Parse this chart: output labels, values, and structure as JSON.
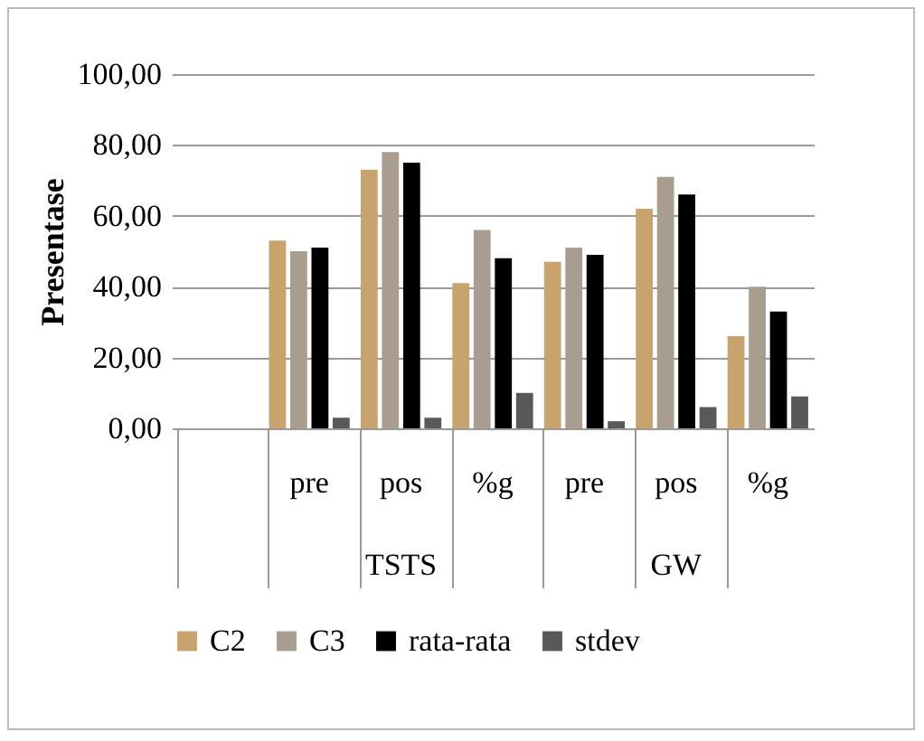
{
  "chart_data": {
    "type": "bar",
    "ylabel": "Presentase",
    "categories": [
      null,
      "pre",
      "pos",
      "%g",
      "pre",
      "pos",
      "%g"
    ],
    "series": [
      {
        "name": "C2",
        "color": "#c9a36e",
        "values": [
          null,
          53,
          73,
          41,
          47,
          62,
          26
        ]
      },
      {
        "name": "C3",
        "color": "#a99d90",
        "values": [
          null,
          50,
          78,
          56,
          51,
          71,
          40
        ]
      },
      {
        "name": "rata-rata",
        "color": "#000000",
        "values": [
          null,
          51,
          75,
          48,
          49,
          66,
          33
        ]
      },
      {
        "name": "stdev",
        "color": "#595959",
        "values": [
          null,
          3,
          3,
          10,
          2,
          6,
          9
        ]
      }
    ],
    "annotations": [
      "TSTS",
      "GW"
    ],
    "ylim": [
      0,
      100
    ],
    "yticks": [
      {
        "value": 0,
        "label": "0,00"
      },
      {
        "value": 20,
        "label": "20,00"
      },
      {
        "value": 40,
        "label": "40,00"
      },
      {
        "value": 60,
        "label": "60,00"
      },
      {
        "value": 80,
        "label": "80,00"
      },
      {
        "value": 100,
        "label": "100,00"
      }
    ],
    "grid": "y",
    "legend": "bottom"
  }
}
